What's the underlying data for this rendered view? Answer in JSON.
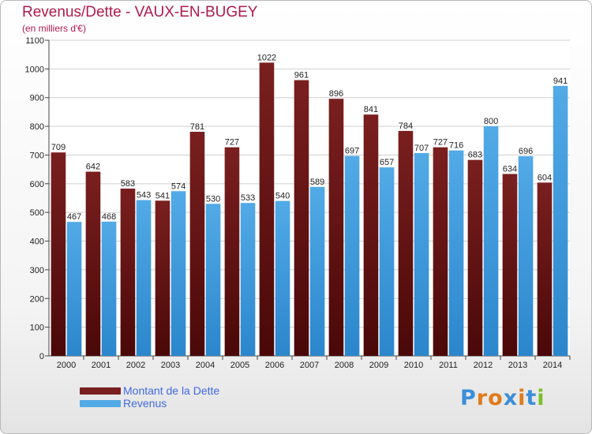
{
  "title": "Revenus/Dette - VAUX-EN-BUGEY",
  "subtitle": "(en milliers d'€)",
  "colors": {
    "dette": "#7a1f1f",
    "dette_dark": "#4a0808",
    "revenus": "#52aae6",
    "revenus_dark": "#2b86cc",
    "title": "#b01a4a",
    "legend_text": "#4169e1"
  },
  "logo": {
    "letters": [
      "P",
      "r",
      "o",
      "x",
      "i",
      "t",
      "i"
    ],
    "colors": [
      "#3c8ed8",
      "#e07a1a",
      "#e07a1a",
      "#3c8ed8",
      "#e07a1a",
      "#3c8ed8",
      "#7bbf2a"
    ]
  },
  "chart_data": {
    "type": "bar",
    "title": "Revenus/Dette - VAUX-EN-BUGEY",
    "subtitle": "(en milliers d'€)",
    "categories": [
      "2000",
      "2001",
      "2002",
      "2003",
      "2004",
      "2005",
      "2006",
      "2007",
      "2008",
      "2009",
      "2010",
      "2011",
      "2012",
      "2013",
      "2014"
    ],
    "series": [
      {
        "name": "Montant de la Dette",
        "values": [
          709,
          642,
          583,
          541,
          781,
          727,
          1022,
          961,
          896,
          841,
          784,
          727,
          683,
          634,
          604
        ]
      },
      {
        "name": "Revenus",
        "values": [
          467,
          468,
          543,
          574,
          530,
          533,
          540,
          589,
          697,
          657,
          707,
          716,
          800,
          696,
          941
        ]
      }
    ],
    "ylim": [
      0,
      1100
    ],
    "yticks": [
      0,
      100,
      200,
      300,
      400,
      500,
      600,
      700,
      800,
      900,
      1000,
      1100
    ],
    "grid": true,
    "legend": "bottom-left"
  }
}
